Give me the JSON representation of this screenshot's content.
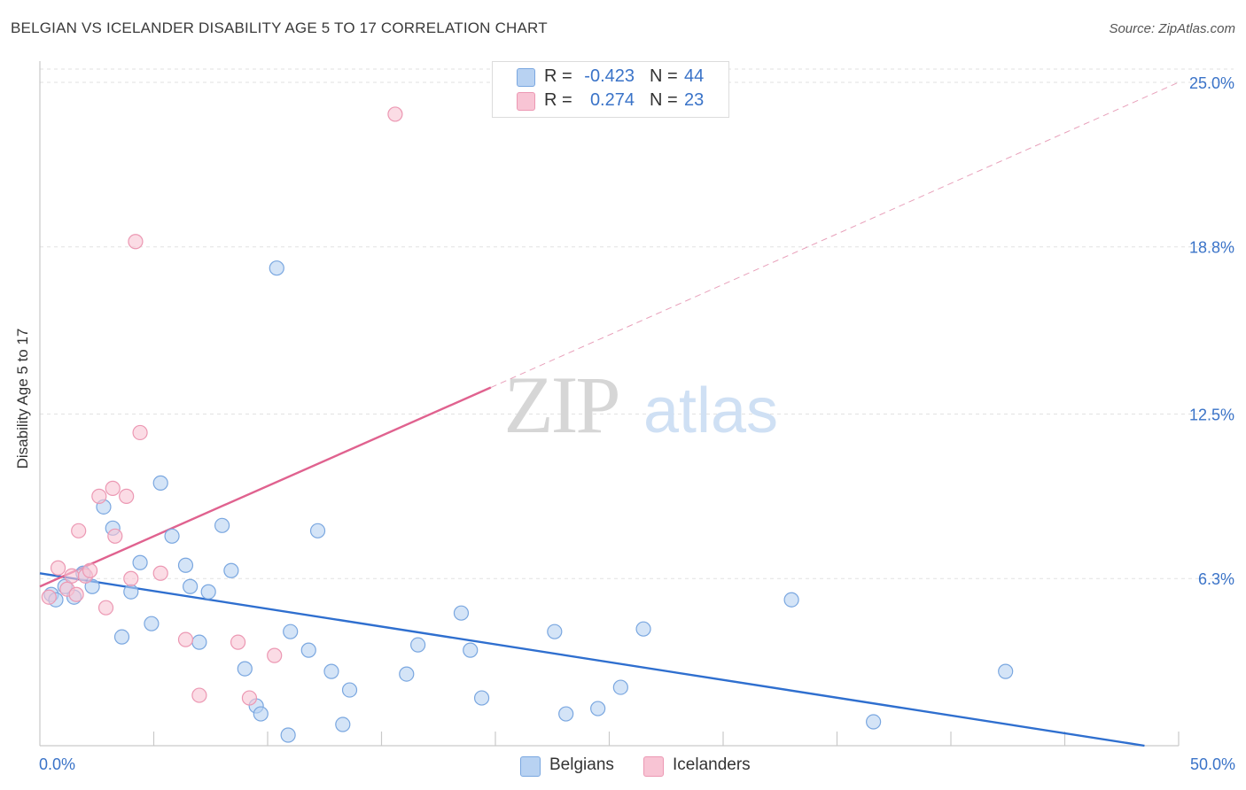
{
  "title": "BELGIAN VS ICELANDER DISABILITY AGE 5 TO 17 CORRELATION CHART",
  "source": "Source: ZipAtlas.com",
  "watermark": {
    "zip": "ZIP",
    "atlas": "atlas"
  },
  "legend": {
    "rows": [
      {
        "r_label": "R =",
        "r_value": "-0.423",
        "n_label": "N =",
        "n_value": "44"
      },
      {
        "r_label": "R =",
        "r_value": "0.274",
        "n_label": "N =",
        "n_value": "23"
      }
    ]
  },
  "bottom_legend": {
    "belgians": "Belgians",
    "icelanders": "Icelanders"
  },
  "colors": {
    "belgian_fill": "#b8d2f2",
    "belgian_stroke": "#7aa7e0",
    "belgian_line": "#2f6fcf",
    "icelander_fill": "#f8c4d4",
    "icelander_stroke": "#ec98b3",
    "icelander_line": "#e0628f",
    "tick_label": "#3a73c8",
    "grid": "#e2e2e2"
  },
  "chart_data": {
    "type": "scatter",
    "title": "BELGIAN VS ICELANDER DISABILITY AGE 5 TO 17 CORRELATION CHART",
    "xlabel": "",
    "ylabel": "Disability Age 5 to 17",
    "xlim": [
      0,
      50
    ],
    "ylim": [
      0,
      25.8
    ],
    "x_tick_labels": [
      {
        "value": 0,
        "label": "0.0%"
      },
      {
        "value": 50,
        "label": "50.0%"
      }
    ],
    "y_tick_labels": [
      {
        "value": 6.3,
        "label": "6.3%"
      },
      {
        "value": 12.5,
        "label": "12.5%"
      },
      {
        "value": 18.8,
        "label": "18.8%"
      },
      {
        "value": 25.0,
        "label": "25.0%"
      }
    ],
    "series": [
      {
        "name": "Belgians",
        "r": -0.423,
        "n": 44,
        "points": [
          [
            0.5,
            5.7
          ],
          [
            0.7,
            5.5
          ],
          [
            1.1,
            6.0
          ],
          [
            1.5,
            5.6
          ],
          [
            2.3,
            6.0
          ],
          [
            1.9,
            6.5
          ],
          [
            2.8,
            9.0
          ],
          [
            3.2,
            8.2
          ],
          [
            3.6,
            4.1
          ],
          [
            4.0,
            5.8
          ],
          [
            4.4,
            6.9
          ],
          [
            4.9,
            4.6
          ],
          [
            5.3,
            9.9
          ],
          [
            5.8,
            7.9
          ],
          [
            6.4,
            6.8
          ],
          [
            6.6,
            6.0
          ],
          [
            7.0,
            3.9
          ],
          [
            7.4,
            5.8
          ],
          [
            8.0,
            8.3
          ],
          [
            8.4,
            6.6
          ],
          [
            9.0,
            2.9
          ],
          [
            9.5,
            1.5
          ],
          [
            9.7,
            1.2
          ],
          [
            10.4,
            18.0
          ],
          [
            10.9,
            0.4
          ],
          [
            11.0,
            4.3
          ],
          [
            11.8,
            3.6
          ],
          [
            12.2,
            8.1
          ],
          [
            12.8,
            2.8
          ],
          [
            13.3,
            0.8
          ],
          [
            13.6,
            2.1
          ],
          [
            16.1,
            2.7
          ],
          [
            16.6,
            3.8
          ],
          [
            18.5,
            5.0
          ],
          [
            18.9,
            3.6
          ],
          [
            19.4,
            1.8
          ],
          [
            22.6,
            4.3
          ],
          [
            23.1,
            1.2
          ],
          [
            24.5,
            1.4
          ],
          [
            25.5,
            2.2
          ],
          [
            26.5,
            4.4
          ],
          [
            33.0,
            5.5
          ],
          [
            36.6,
            0.9
          ],
          [
            42.4,
            2.8
          ]
        ],
        "trend": {
          "x0": 0,
          "y0": 6.5,
          "x1": 48.5,
          "y1": 0.0
        }
      },
      {
        "name": "Icelanders",
        "r": 0.274,
        "n": 23,
        "points": [
          [
            0.4,
            5.6
          ],
          [
            0.8,
            6.7
          ],
          [
            1.2,
            5.9
          ],
          [
            1.4,
            6.4
          ],
          [
            1.6,
            5.7
          ],
          [
            2.0,
            6.4
          ],
          [
            2.2,
            6.6
          ],
          [
            2.6,
            9.4
          ],
          [
            1.7,
            8.1
          ],
          [
            2.9,
            5.2
          ],
          [
            3.3,
            7.9
          ],
          [
            3.2,
            9.7
          ],
          [
            3.8,
            9.4
          ],
          [
            4.0,
            6.3
          ],
          [
            4.2,
            19.0
          ],
          [
            4.4,
            11.8
          ],
          [
            5.3,
            6.5
          ],
          [
            6.4,
            4.0
          ],
          [
            7.0,
            1.9
          ],
          [
            8.7,
            3.9
          ],
          [
            9.2,
            1.8
          ],
          [
            10.3,
            3.4
          ],
          [
            15.6,
            23.8
          ]
        ],
        "trend": {
          "x0": 0,
          "y0": 6.0,
          "x1": 19.8,
          "y1": 13.5
        },
        "trend_extension": {
          "x0": 19.8,
          "y0": 13.5,
          "x1": 50,
          "y1": 25.0
        }
      }
    ]
  }
}
